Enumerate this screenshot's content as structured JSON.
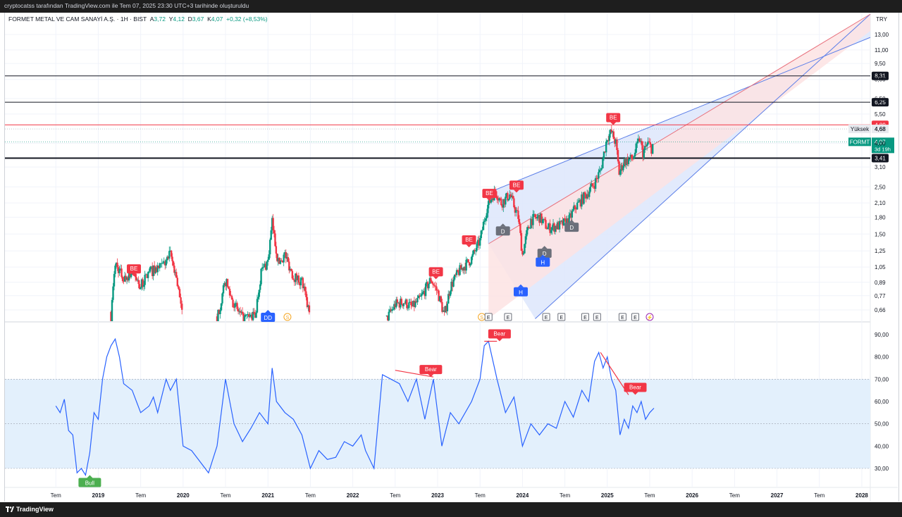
{
  "header": {
    "caption": "cryptocatss tarafından TradingView.com ile Tem 07, 2025 23:30 UTC+3 tarihinde oluşturuldu"
  },
  "legend": {
    "symbol": "FORMET METAL VE CAM SANAYİ A.Ş. · 1H · BIST",
    "open_label": "A",
    "open": "3,72",
    "high_label": "Y",
    "high": "4,12",
    "low_label": "D",
    "low": "3,67",
    "close_label": "K",
    "close": "4,07",
    "change": "+0,32 (+8,53%)"
  },
  "footer": {
    "brand": "TradingView"
  },
  "colors": {
    "up": "#089981",
    "down": "#f23645",
    "rsi_line": "#2962ff",
    "rsi_band": "#e3f0fc",
    "channel_blue": "#dde6fb",
    "channel_red": "#fde3e3",
    "bubble_red": "#f23645",
    "bubble_gray": "#6b6f7a",
    "bubble_blue": "#2962ff"
  },
  "chart_data": [
    {
      "type": "candlestick",
      "currency": "TRY",
      "scale": "log",
      "ylim": [
        0.6,
        15
      ],
      "price_ticks": [
        "13,00",
        "11,00",
        "9,50",
        "8,00",
        "6,50",
        "5,50",
        "4,68",
        "4,00",
        "3,10",
        "2,50",
        "2,10",
        "1,80",
        "1,50",
        "1,25",
        "1,05",
        "0,89",
        "0,77",
        "0,66"
      ],
      "price_tick_values": [
        13,
        11,
        9.5,
        8,
        6.5,
        5.5,
        4.68,
        4.0,
        3.1,
        2.5,
        2.1,
        1.8,
        1.5,
        1.25,
        1.05,
        0.89,
        0.77,
        0.66
      ],
      "x_axis": {
        "labels": [
          "Tem",
          "2019",
          "Tem",
          "2020",
          "Tem",
          "2021",
          "Tem",
          "2022",
          "Tem",
          "2023",
          "Tem",
          "2024",
          "Tem",
          "2025",
          "Tem",
          "2026",
          "Tem",
          "2027",
          "Tem",
          "2028"
        ],
        "label_years": [
          2018.5,
          2019,
          2019.5,
          2020,
          2020.5,
          2021,
          2021.5,
          2022,
          2022.5,
          2023,
          2023.5,
          2024,
          2024.5,
          2025,
          2025.5,
          2026,
          2026.5,
          2027,
          2027.5,
          2028
        ],
        "xlim": [
          2017.9,
          2028.1
        ]
      },
      "path": [
        [
          2019.15,
          0.62
        ],
        [
          2019.2,
          1.1
        ],
        [
          2019.3,
          0.92
        ],
        [
          2019.4,
          1.0
        ],
        [
          2019.5,
          0.85
        ],
        [
          2019.6,
          1.0
        ],
        [
          2019.75,
          1.05
        ],
        [
          2019.85,
          1.2
        ],
        [
          2019.92,
          0.95
        ],
        [
          2020.0,
          0.58
        ],
        [
          2020.4,
          0.6
        ],
        [
          2020.5,
          0.9
        ],
        [
          2020.6,
          0.7
        ],
        [
          2020.7,
          0.6
        ],
        [
          2020.85,
          0.62
        ],
        [
          2020.92,
          1.0
        ],
        [
          2021.0,
          1.12
        ],
        [
          2021.05,
          1.7
        ],
        [
          2021.12,
          1.1
        ],
        [
          2021.2,
          1.2
        ],
        [
          2021.3,
          0.95
        ],
        [
          2021.4,
          0.9
        ],
        [
          2021.5,
          0.6
        ],
        [
          2022.4,
          0.6
        ],
        [
          2022.5,
          0.7
        ],
        [
          2022.6,
          0.72
        ],
        [
          2022.7,
          0.68
        ],
        [
          2022.8,
          0.75
        ],
        [
          2022.92,
          0.92
        ],
        [
          2023.0,
          0.8
        ],
        [
          2023.08,
          0.62
        ],
        [
          2023.15,
          0.85
        ],
        [
          2023.25,
          1.0
        ],
        [
          2023.4,
          1.15
        ],
        [
          2023.5,
          1.4
        ],
        [
          2023.58,
          2.0
        ],
        [
          2023.68,
          2.4
        ],
        [
          2023.75,
          2.1
        ],
        [
          2023.85,
          2.3
        ],
        [
          2023.95,
          1.8
        ],
        [
          2024.0,
          1.2
        ],
        [
          2024.05,
          1.5
        ],
        [
          2024.1,
          1.75
        ],
        [
          2024.2,
          1.8
        ],
        [
          2024.3,
          1.6
        ],
        [
          2024.45,
          1.65
        ],
        [
          2024.55,
          1.75
        ],
        [
          2024.62,
          2.0
        ],
        [
          2024.75,
          2.3
        ],
        [
          2024.85,
          2.6
        ],
        [
          2024.92,
          3.0
        ],
        [
          2025.0,
          4.3
        ],
        [
          2025.05,
          4.5
        ],
        [
          2025.1,
          4.0
        ],
        [
          2025.14,
          2.9
        ],
        [
          2025.2,
          3.3
        ],
        [
          2025.3,
          3.4
        ],
        [
          2025.38,
          4.2
        ],
        [
          2025.42,
          3.6
        ],
        [
          2025.48,
          4.0
        ],
        [
          2025.52,
          3.8
        ],
        [
          2025.55,
          4.07
        ]
      ],
      "horizontal_levels": [
        {
          "value": 8.31,
          "label": "8,31",
          "color": "#131722",
          "badge": "#131722",
          "width": 1
        },
        {
          "value": 6.25,
          "label": "6,25",
          "color": "#131722",
          "badge": "#131722",
          "width": 1
        },
        {
          "value": 4.89,
          "label": "4,89",
          "color": "#f23645",
          "badge": "#f23645",
          "width": 1
        },
        {
          "value": 3.41,
          "label": "3,41",
          "color": "#131722",
          "badge": "#131722",
          "width": 2
        }
      ],
      "price_markers": [
        {
          "tag": "Yüksek",
          "label": "4,68",
          "value": 4.68
        },
        {
          "tag": "FORMT",
          "label": "4,07",
          "sub": "3d 19h",
          "value": 4.07
        }
      ],
      "channels": [
        {
          "color": "blue",
          "points": [
            [
              2023.6,
              2.35
            ],
            [
              2028.1,
              12.6
            ],
            [
              2028.1,
              16.2
            ],
            [
              2024.15,
              0.6
            ],
            [
              2023.6,
              1.35
            ]
          ]
        },
        {
          "color": "red",
          "points": [
            [
              2023.6,
              1.35
            ],
            [
              2028.1,
              16.2
            ],
            [
              2028.1,
              13.5
            ],
            [
              2023.6,
              0.6
            ]
          ]
        }
      ],
      "signals": [
        {
          "label": "BE",
          "t": 2019.42,
          "v": 0.95,
          "kind": "red",
          "dir": "down"
        },
        {
          "label": "DD",
          "t": 2021.0,
          "v": 0.66,
          "kind": "blue",
          "dir": "up"
        },
        {
          "label": "BE",
          "t": 2022.98,
          "v": 0.92,
          "kind": "red",
          "dir": "down"
        },
        {
          "label": "BE",
          "t": 2023.37,
          "v": 1.3,
          "kind": "red",
          "dir": "down"
        },
        {
          "label": "BE",
          "t": 2023.61,
          "v": 2.15,
          "kind": "red",
          "dir": "down"
        },
        {
          "label": "BE",
          "t": 2023.93,
          "v": 2.35,
          "kind": "red",
          "dir": "down"
        },
        {
          "label": "D",
          "t": 2023.77,
          "v": 1.68,
          "kind": "gray",
          "dir": "up"
        },
        {
          "label": "D",
          "t": 2024.26,
          "v": 1.32,
          "kind": "gray",
          "dir": "up"
        },
        {
          "label": "D",
          "t": 2024.58,
          "v": 1.75,
          "kind": "gray",
          "dir": "up"
        },
        {
          "label": "H",
          "t": 2023.98,
          "v": 0.87,
          "kind": "blue",
          "dir": "up"
        },
        {
          "label": "H",
          "t": 2024.24,
          "v": 1.2,
          "kind": "blue",
          "dir": "up"
        },
        {
          "label": "BE",
          "t": 2025.07,
          "v": 4.88,
          "kind": "red",
          "dir": "down"
        }
      ],
      "event_markers": [
        {
          "label": "S",
          "t": 2021.23,
          "kind": "orange"
        },
        {
          "label": "S",
          "t": 2023.52,
          "kind": "orange"
        },
        {
          "label": "E",
          "t": 2023.6,
          "kind": "gray"
        },
        {
          "label": "E",
          "t": 2023.83,
          "kind": "gray"
        },
        {
          "label": "E",
          "t": 2024.28,
          "kind": "gray"
        },
        {
          "label": "E",
          "t": 2024.46,
          "kind": "gray"
        },
        {
          "label": "E",
          "t": 2024.74,
          "kind": "gray"
        },
        {
          "label": "E",
          "t": 2024.88,
          "kind": "gray"
        },
        {
          "label": "E",
          "t": 2025.18,
          "kind": "gray"
        },
        {
          "label": "E",
          "t": 2025.33,
          "kind": "gray"
        },
        {
          "label": "⚡",
          "t": 2025.5,
          "kind": "purple"
        }
      ]
    },
    {
      "type": "line",
      "ylim": [
        25,
        93
      ],
      "ticks": [
        "90,00",
        "80,00",
        "70,00",
        "60,00",
        "50,00",
        "40,00",
        "30,00"
      ],
      "tick_values": [
        90,
        80,
        70,
        60,
        50,
        40,
        30
      ],
      "band": [
        30,
        70
      ],
      "midline": 50,
      "path": [
        [
          2018.5,
          58
        ],
        [
          2018.55,
          55
        ],
        [
          2018.6,
          61
        ],
        [
          2018.65,
          47
        ],
        [
          2018.7,
          45
        ],
        [
          2018.75,
          28
        ],
        [
          2018.8,
          30
        ],
        [
          2018.85,
          27
        ],
        [
          2018.9,
          37
        ],
        [
          2018.95,
          55
        ],
        [
          2019.0,
          52
        ],
        [
          2019.05,
          70
        ],
        [
          2019.1,
          80
        ],
        [
          2019.15,
          85
        ],
        [
          2019.2,
          88
        ],
        [
          2019.25,
          80
        ],
        [
          2019.3,
          68
        ],
        [
          2019.4,
          65
        ],
        [
          2019.45,
          60
        ],
        [
          2019.5,
          55
        ],
        [
          2019.6,
          58
        ],
        [
          2019.65,
          62
        ],
        [
          2019.7,
          55
        ],
        [
          2019.8,
          70
        ],
        [
          2019.85,
          65
        ],
        [
          2019.92,
          70
        ],
        [
          2020.0,
          40
        ],
        [
          2020.1,
          38
        ],
        [
          2020.2,
          33
        ],
        [
          2020.3,
          28
        ],
        [
          2020.4,
          40
        ],
        [
          2020.5,
          70
        ],
        [
          2020.6,
          50
        ],
        [
          2020.7,
          42
        ],
        [
          2020.8,
          48
        ],
        [
          2020.9,
          55
        ],
        [
          2021.0,
          50
        ],
        [
          2021.05,
          75
        ],
        [
          2021.1,
          60
        ],
        [
          2021.2,
          55
        ],
        [
          2021.3,
          52
        ],
        [
          2021.4,
          45
        ],
        [
          2021.5,
          30
        ],
        [
          2021.6,
          38
        ],
        [
          2021.7,
          34
        ],
        [
          2021.8,
          35
        ],
        [
          2021.9,
          42
        ],
        [
          2022.0,
          40
        ],
        [
          2022.1,
          45
        ],
        [
          2022.15,
          38
        ],
        [
          2022.25,
          30
        ],
        [
          2022.35,
          72
        ],
        [
          2022.45,
          70
        ],
        [
          2022.55,
          68
        ],
        [
          2022.65,
          60
        ],
        [
          2022.75,
          70
        ],
        [
          2022.85,
          52
        ],
        [
          2022.95,
          70
        ],
        [
          2023.05,
          40
        ],
        [
          2023.15,
          55
        ],
        [
          2023.25,
          50
        ],
        [
          2023.4,
          60
        ],
        [
          2023.5,
          70
        ],
        [
          2023.55,
          85
        ],
        [
          2023.6,
          87
        ],
        [
          2023.7,
          70
        ],
        [
          2023.8,
          55
        ],
        [
          2023.9,
          62
        ],
        [
          2024.0,
          40
        ],
        [
          2024.1,
          50
        ],
        [
          2024.2,
          45
        ],
        [
          2024.3,
          50
        ],
        [
          2024.4,
          48
        ],
        [
          2024.5,
          60
        ],
        [
          2024.6,
          53
        ],
        [
          2024.7,
          65
        ],
        [
          2024.78,
          60
        ],
        [
          2024.85,
          78
        ],
        [
          2024.9,
          82
        ],
        [
          2024.95,
          75
        ],
        [
          2025.0,
          80
        ],
        [
          2025.05,
          70
        ],
        [
          2025.1,
          65
        ],
        [
          2025.15,
          45
        ],
        [
          2025.2,
          52
        ],
        [
          2025.25,
          48
        ],
        [
          2025.3,
          58
        ],
        [
          2025.35,
          55
        ],
        [
          2025.4,
          60
        ],
        [
          2025.45,
          52
        ],
        [
          2025.5,
          55
        ],
        [
          2025.55,
          57
        ]
      ],
      "divergence_lines": [
        {
          "from": [
            2022.5,
            74
          ],
          "to": [
            2022.95,
            71
          ],
          "color": "#f23645"
        },
        {
          "from": [
            2023.55,
            87
          ],
          "to": [
            2023.7,
            87
          ],
          "color": "#f23645"
        },
        {
          "from": [
            2024.92,
            82
          ],
          "to": [
            2025.25,
            63
          ],
          "color": "#f23645"
        }
      ],
      "signals": [
        {
          "label": "Bull",
          "t": 2018.9,
          "v": 27,
          "kind": "green",
          "dir": "up"
        },
        {
          "label": "Bear",
          "t": 2022.92,
          "v": 71,
          "kind": "red",
          "dir": "down"
        },
        {
          "label": "Bear",
          "t": 2023.73,
          "v": 87,
          "kind": "red",
          "dir": "down"
        },
        {
          "label": "Bear",
          "t": 2025.33,
          "v": 63,
          "kind": "red",
          "dir": "down"
        }
      ]
    }
  ]
}
